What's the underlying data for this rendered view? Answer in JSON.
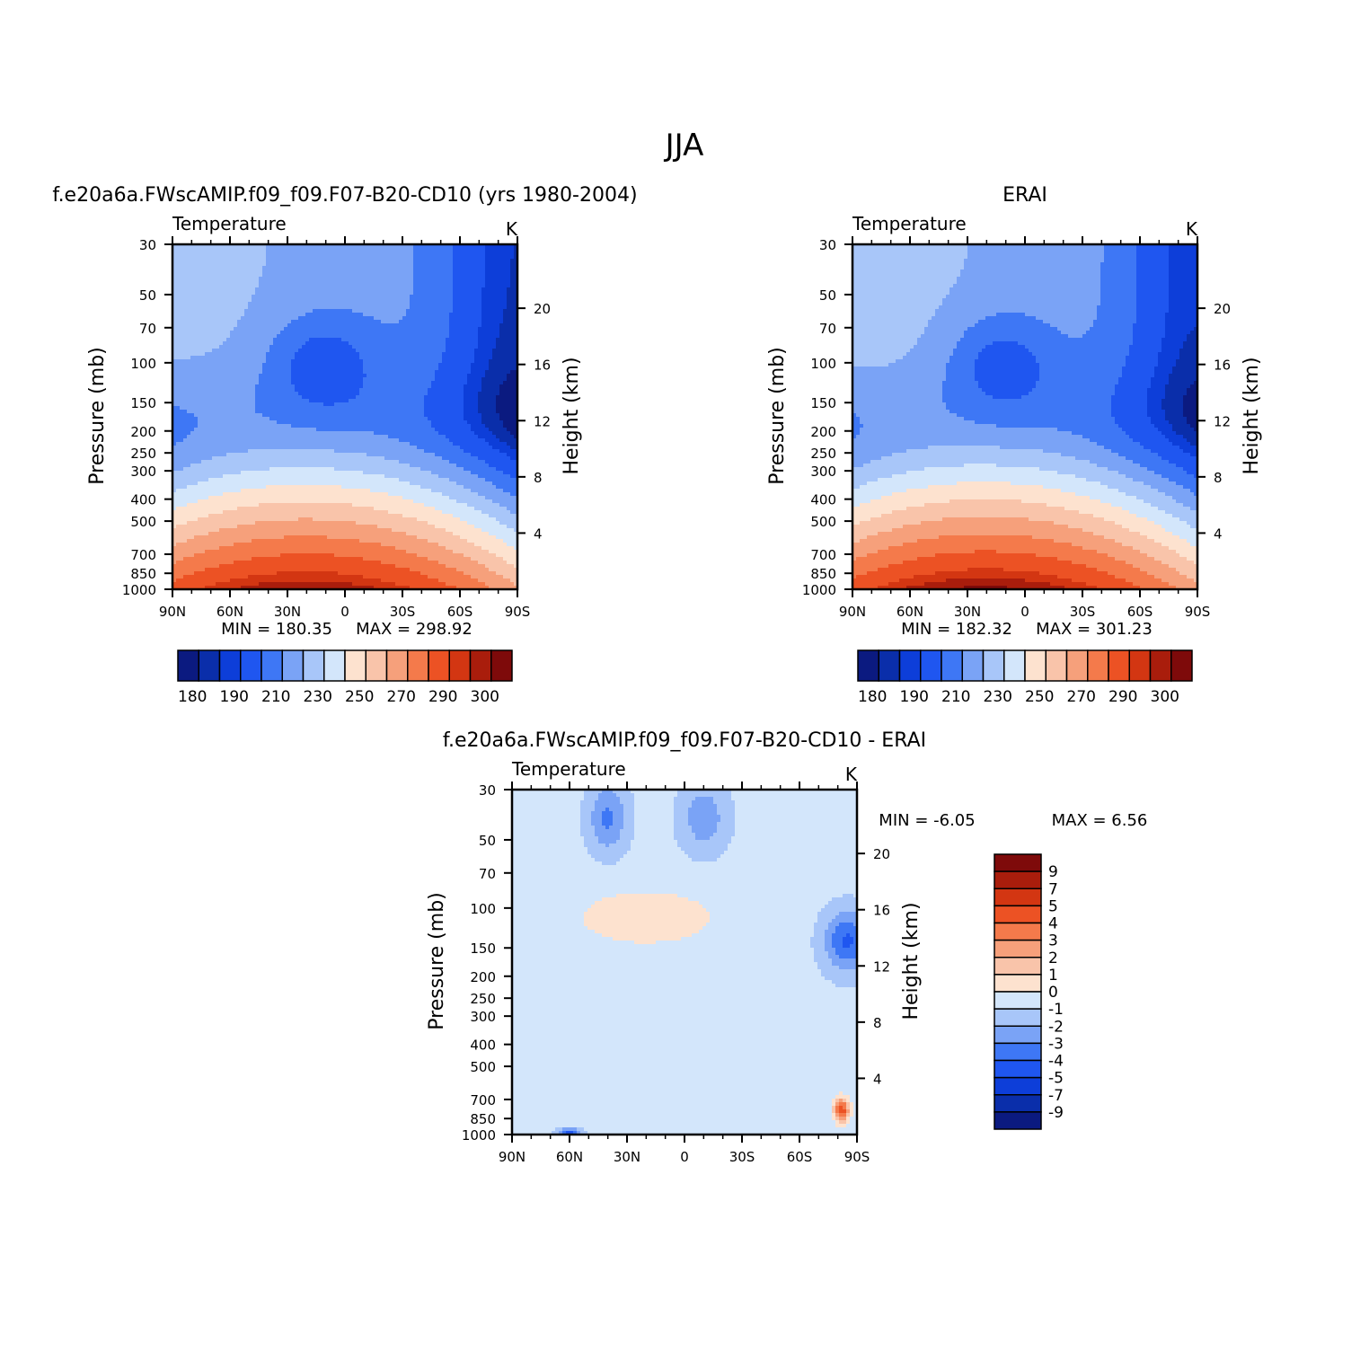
{
  "page_title": "JJA",
  "colors": {
    "axis": "#000000",
    "background": "#ffffff",
    "abs_palette": [
      "#0b1a80",
      "#0a2eaa",
      "#0d3ed9",
      "#1f56f0",
      "#3e77f5",
      "#7aa3f6",
      "#a8c6f9",
      "#d3e6fb",
      "#fde2cf",
      "#f9c4aa",
      "#f6a07b",
      "#f47a4b",
      "#ec5224",
      "#d33612",
      "#a91d0c",
      "#7e0a0a"
    ],
    "diff_palette": [
      "#0b1a80",
      "#0a2eaa",
      "#0d3ed9",
      "#1f56f0",
      "#3e77f5",
      "#7aa3f6",
      "#a8c6f9",
      "#d3e6fb",
      "#fde2cf",
      "#f9c4aa",
      "#f6a07b",
      "#f47a4b",
      "#ec5224",
      "#d33612",
      "#a91d0c",
      "#7e0a0a"
    ]
  },
  "chart_data": [
    {
      "type": "heatmap",
      "id": "model",
      "title": "f.e20a6a.FWscAMIP.f09_f09.F07-B20-CD10 (yrs 1980-2004)",
      "subtitle_left": "Temperature",
      "subtitle_right": "K",
      "ylabel": "Pressure (mb)",
      "ylabel_right": "Height (km)",
      "x_ticks": [
        "90N",
        "60N",
        "30N",
        "0",
        "30S",
        "60S",
        "90S"
      ],
      "y_ticks": [
        "30",
        "50",
        "70",
        "100",
        "150",
        "200",
        "250",
        "300",
        "400",
        "500",
        "700",
        "850",
        "1000"
      ],
      "y_ticks_right": [
        "4",
        "8",
        "12",
        "16",
        "20"
      ],
      "min_text": "MIN =  180.35",
      "max_text": "MAX =  298.92",
      "colorbar_labels": [
        "180",
        "190",
        "210",
        "230",
        "250",
        "270",
        "290",
        "300"
      ],
      "field": "abs",
      "offset": 0
    },
    {
      "type": "heatmap",
      "id": "obs",
      "title": "ERAI",
      "subtitle_left": "Temperature",
      "subtitle_right": "K",
      "ylabel": "Pressure (mb)",
      "ylabel_right": "Height (km)",
      "x_ticks": [
        "90N",
        "60N",
        "30N",
        "0",
        "30S",
        "60S",
        "90S"
      ],
      "y_ticks": [
        "30",
        "50",
        "70",
        "100",
        "150",
        "200",
        "250",
        "300",
        "400",
        "500",
        "700",
        "850",
        "1000"
      ],
      "y_ticks_right": [
        "4",
        "8",
        "12",
        "16",
        "20"
      ],
      "min_text": "MIN =  182.32",
      "max_text": "MAX =  301.23",
      "colorbar_labels": [
        "180",
        "190",
        "210",
        "230",
        "250",
        "270",
        "290",
        "300"
      ],
      "field": "abs",
      "offset": 1
    },
    {
      "type": "heatmap",
      "id": "diff",
      "title": "f.e20a6a.FWscAMIP.f09_f09.F07-B20-CD10 - ERAI",
      "subtitle_left": "Temperature",
      "subtitle_right": "K",
      "ylabel": "Pressure (mb)",
      "ylabel_right": "Height (km)",
      "x_ticks": [
        "90N",
        "60N",
        "30N",
        "0",
        "30S",
        "60S",
        "90S"
      ],
      "y_ticks": [
        "30",
        "50",
        "70",
        "100",
        "150",
        "200",
        "250",
        "300",
        "400",
        "500",
        "700",
        "850",
        "1000"
      ],
      "y_ticks_right": [
        "4",
        "8",
        "12",
        "16",
        "20"
      ],
      "min_text": "MIN =   -6.05",
      "max_text": "MAX =     6.56",
      "colorbar_labels": [
        "9",
        "7",
        "5",
        "4",
        "3",
        "2",
        "1",
        "0",
        "-1",
        "-2",
        "-3",
        "-4",
        "-5",
        "-7",
        "-9"
      ],
      "field": "diff"
    }
  ]
}
